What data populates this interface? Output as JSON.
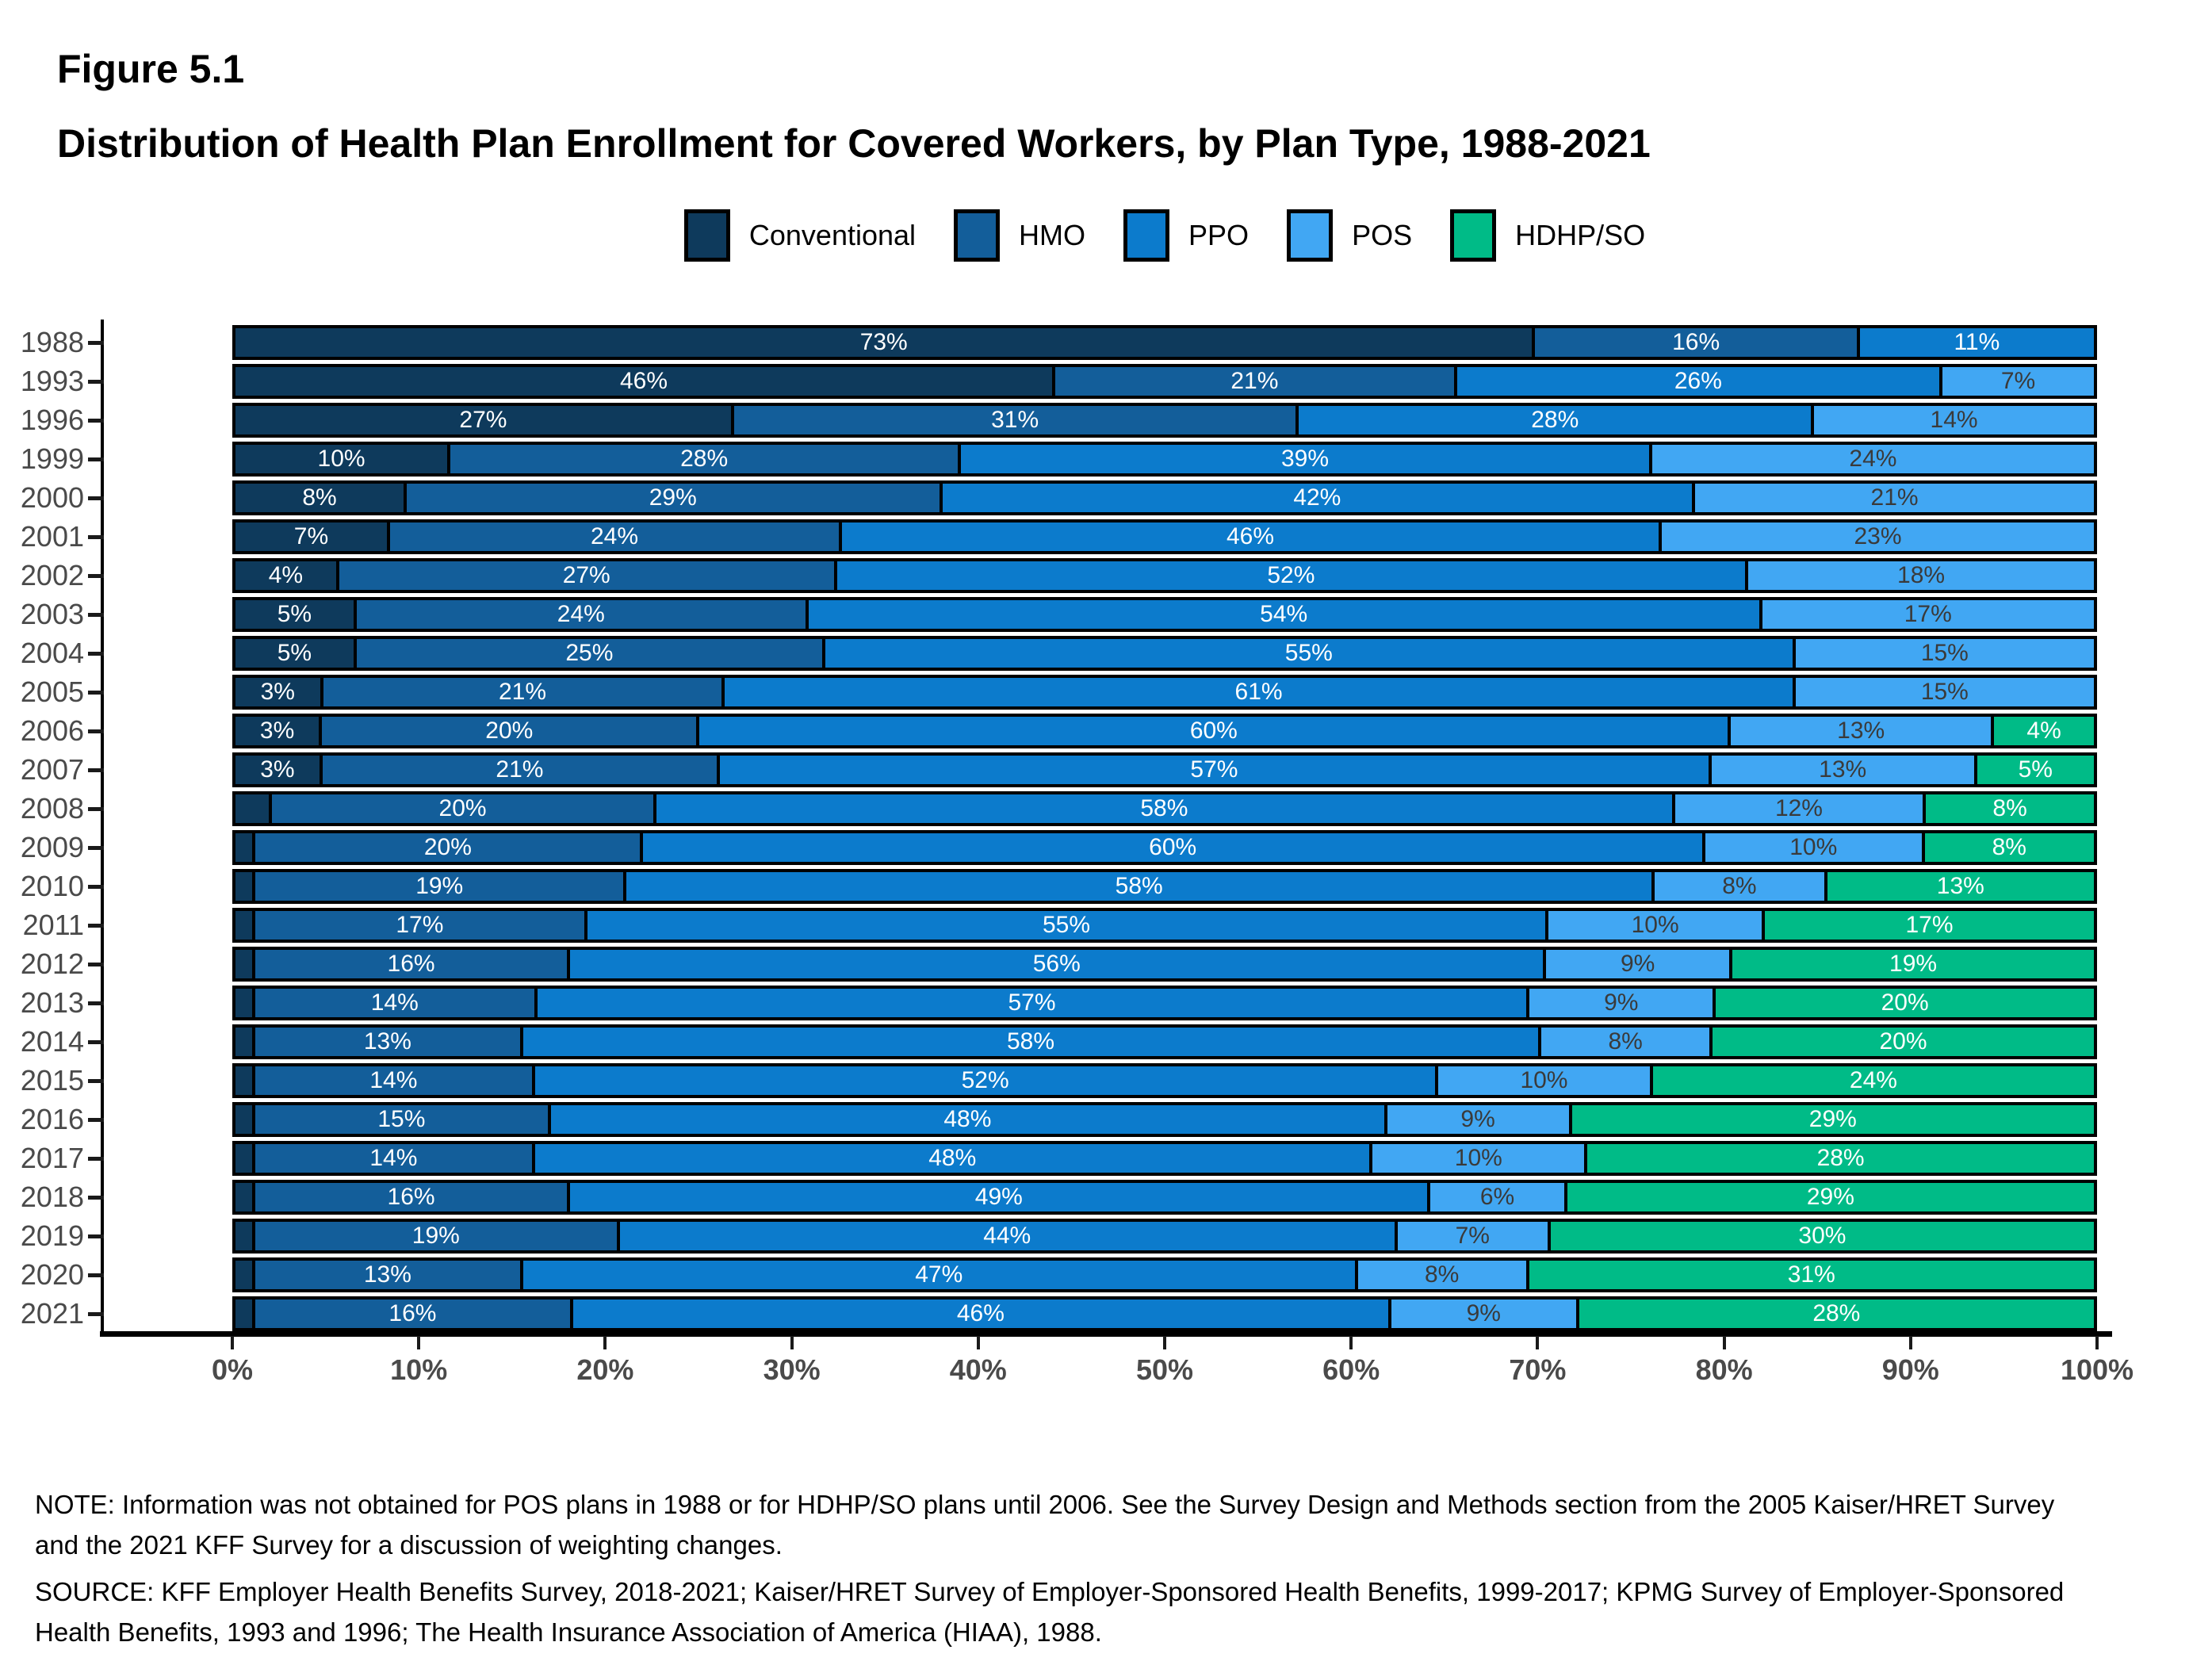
{
  "header": {
    "figure_label": "Figure 5.1",
    "title": "Distribution of Health Plan Enrollment for Covered Workers, by Plan Type, 1988-2021"
  },
  "chart_data": {
    "type": "bar",
    "stacked": true,
    "orientation": "horizontal",
    "unit": "%",
    "label_threshold": 3,
    "xlim": [
      0,
      100
    ],
    "grid": false,
    "legend_position": "top-center",
    "axis_tick_labels_x": [
      "0%",
      "10%",
      "20%",
      "30%",
      "40%",
      "50%",
      "60%",
      "70%",
      "80%",
      "90%",
      "100%"
    ],
    "categories": [
      "1988",
      "1993",
      "1996",
      "1999",
      "2000",
      "2001",
      "2002",
      "2003",
      "2004",
      "2005",
      "2006",
      "2007",
      "2008",
      "2009",
      "2010",
      "2011",
      "2012",
      "2013",
      "2014",
      "2015",
      "2016",
      "2017",
      "2018",
      "2019",
      "2020",
      "2021"
    ],
    "series": [
      {
        "name": "Conventional",
        "color": "#0E3A5C",
        "label_color": "#FFFFFF",
        "values": [
          73,
          46,
          27,
          10,
          8,
          7,
          4,
          5,
          5,
          3,
          3,
          3,
          2,
          1,
          1,
          1,
          1,
          1,
          1,
          1,
          1,
          1,
          1,
          1,
          1,
          1
        ]
      },
      {
        "name": "HMO",
        "color": "#135E9A",
        "label_color": "#FFFFFF",
        "values": [
          16,
          21,
          31,
          28,
          29,
          24,
          27,
          24,
          25,
          21,
          20,
          21,
          20,
          20,
          19,
          17,
          16,
          14,
          13,
          14,
          15,
          14,
          16,
          19,
          13,
          16
        ]
      },
      {
        "name": "PPO",
        "color": "#0C7BCC",
        "label_color": "#FFFFFF",
        "values": [
          11,
          26,
          28,
          39,
          42,
          46,
          52,
          54,
          55,
          61,
          60,
          57,
          58,
          60,
          58,
          55,
          56,
          57,
          58,
          52,
          48,
          48,
          49,
          44,
          47,
          46
        ]
      },
      {
        "name": "POS",
        "color": "#41A7F3",
        "label_color": "#3A3A3A",
        "values": [
          null,
          7,
          14,
          24,
          21,
          23,
          18,
          17,
          15,
          15,
          13,
          13,
          12,
          10,
          8,
          10,
          9,
          9,
          8,
          10,
          9,
          10,
          6,
          7,
          8,
          9
        ]
      },
      {
        "name": "HDHP/SO",
        "color": "#00BB87",
        "label_color": "#FFFFFF",
        "values": [
          null,
          null,
          null,
          null,
          null,
          null,
          null,
          null,
          null,
          null,
          4,
          5,
          8,
          8,
          13,
          17,
          19,
          20,
          20,
          24,
          29,
          28,
          29,
          30,
          31,
          28
        ]
      }
    ]
  },
  "footer": {
    "note": "NOTE: Information was not obtained for POS plans in 1988 or for HDHP/SO plans until 2006. See the Survey Design and Methods section from the 2005 Kaiser/HRET Survey and the 2021 KFF Survey for a discussion of weighting changes.",
    "source": "SOURCE: KFF Employer Health Benefits Survey, 2018-2021; Kaiser/HRET Survey of Employer-Sponsored Health Benefits, 1999-2017; KPMG Survey of Employer-Sponsored Health Benefits, 1993 and 1996; The Health Insurance Association of America (HIAA), 1988."
  }
}
